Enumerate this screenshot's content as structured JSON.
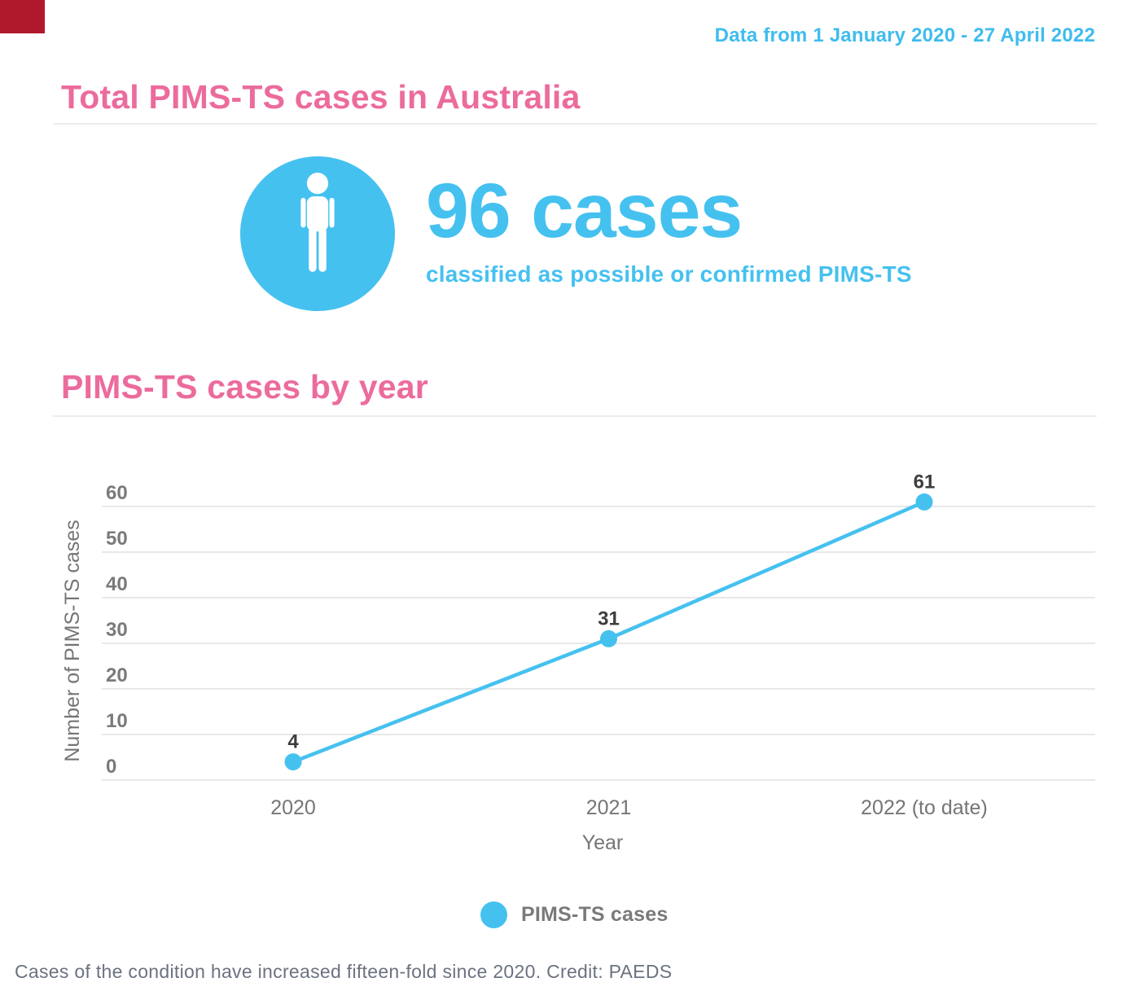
{
  "colors": {
    "accent_blue": "#45c1f0",
    "heading_pink": "#ec6b9d",
    "corner_red": "#b0182c",
    "grid_gray": "#e8e8e8",
    "axis_text_gray": "#757575",
    "point_label_dark": "#3d3d3d",
    "caption_gray": "#6b7280"
  },
  "header": {
    "date_range": "Data from 1 January 2020 - 27 April 2022"
  },
  "sections": {
    "total_cases_title": "Total PIMS-TS cases in Australia",
    "by_year_title": "PIMS-TS cases by year"
  },
  "stat": {
    "icon": "person-icon",
    "value": "96 cases",
    "description": "classified as possible or confirmed PIMS-TS"
  },
  "chart_data": {
    "type": "line",
    "title": "PIMS-TS cases by year",
    "categories": [
      "2020",
      "2021",
      "2022 (to date)"
    ],
    "series": [
      {
        "name": "PIMS-TS cases",
        "values": [
          4,
          31,
          61
        ]
      }
    ],
    "point_labels": [
      "4",
      "31",
      "61"
    ],
    "xlabel": "Year",
    "ylabel": "Number of PIMS-TS cases",
    "ylim": [
      0,
      60
    ],
    "yticks": [
      0,
      10,
      20,
      30,
      40,
      50,
      60
    ],
    "grid": true,
    "legend_position": "bottom",
    "line_color": "#45c1f0"
  },
  "caption": "Cases of the condition have increased fifteen-fold since 2020. Credit: PAEDS"
}
